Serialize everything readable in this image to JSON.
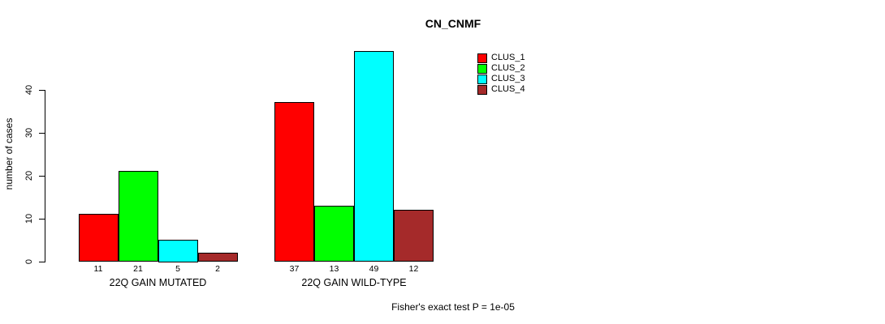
{
  "title": "CN_CNMF",
  "y_axis": {
    "label": "number of cases",
    "ticks": [
      0,
      10,
      20,
      30,
      40
    ]
  },
  "footer": "Fisher's exact test P = 1e-05",
  "legend": {
    "items": [
      {
        "label": "CLUS_1",
        "color": "#FF0000"
      },
      {
        "label": "CLUS_2",
        "color": "#00FF00"
      },
      {
        "label": "CLUS_3",
        "color": "#00FFFF"
      },
      {
        "label": "CLUS_4",
        "color": "#A52A2A"
      }
    ]
  },
  "chart_data": {
    "type": "bar",
    "title": "CN_CNMF",
    "ylabel": "number of cases",
    "ylim": [
      0,
      40
    ],
    "yticks": [
      0,
      10,
      20,
      30,
      40
    ],
    "grid": false,
    "legend_position": "top-right",
    "categories": [
      "22Q GAIN MUTATED",
      "22Q GAIN WILD-TYPE"
    ],
    "series": [
      {
        "name": "CLUS_1",
        "color": "#FF0000",
        "values": [
          11,
          37
        ]
      },
      {
        "name": "CLUS_2",
        "color": "#00FF00",
        "values": [
          21,
          13
        ]
      },
      {
        "name": "CLUS_3",
        "color": "#00FFFF",
        "values": [
          5,
          49
        ]
      },
      {
        "name": "CLUS_4",
        "color": "#A52A2A",
        "values": [
          2,
          12
        ]
      }
    ],
    "bar_value_labels": true,
    "annotation": "Fisher's exact test P = 1e-05"
  }
}
